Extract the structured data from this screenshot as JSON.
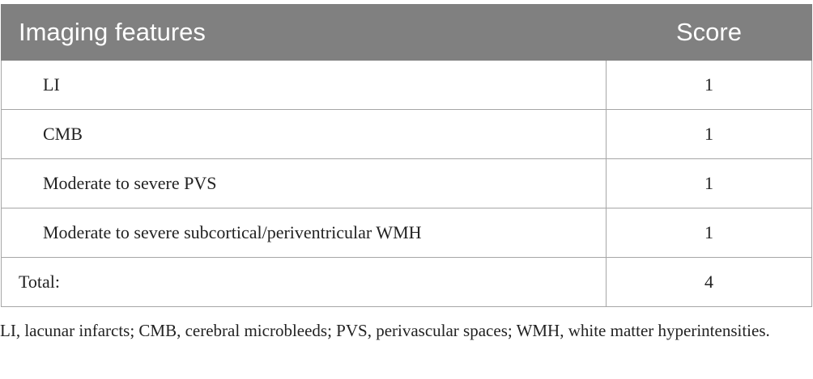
{
  "table": {
    "header": [
      "Imaging features",
      "Score"
    ],
    "rows": [
      [
        "LI",
        1
      ],
      [
        "CMB",
        1
      ],
      [
        "Moderate to severe PVS",
        1
      ],
      [
        "Moderate to severe subcortical/periventricular WMH",
        1
      ],
      [
        "Total:",
        4
      ]
    ]
  },
  "footnote": "LI, lacunar infarcts; CMB, cerebral microbleeds; PVS, perivascular spaces; WMH, white matter hyperintensities."
}
